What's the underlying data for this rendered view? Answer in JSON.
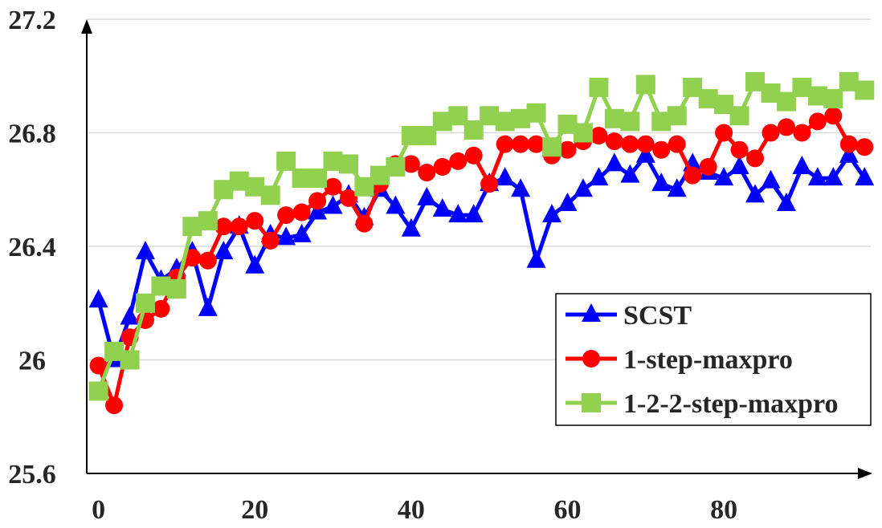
{
  "chart_data": {
    "type": "line",
    "title": "",
    "xlabel": "",
    "ylabel": "",
    "xlim": [
      -1.5,
      99
    ],
    "ylim": [
      25.6,
      27.2
    ],
    "yticks": [
      "25.6",
      "26",
      "26.4",
      "26.8",
      "27.2"
    ],
    "xticks": [
      "0",
      "20",
      "40",
      "60",
      "80"
    ],
    "grid": "horizontal",
    "legend_position": "bottom-right",
    "series": [
      {
        "name": "SCST",
        "color": "#0000ff",
        "marker": "triangle",
        "x": [
          0,
          2,
          4,
          6,
          8,
          10,
          12,
          14,
          16,
          18,
          20,
          22,
          24,
          26,
          28,
          30,
          32,
          34,
          36,
          38,
          40,
          42,
          44,
          46,
          48,
          50,
          52,
          54,
          56,
          58,
          60,
          62,
          64,
          66,
          68,
          70,
          72,
          74,
          76,
          78,
          80,
          82,
          84,
          86,
          88,
          90,
          92,
          94,
          96,
          98
        ],
        "values": [
          26.21,
          26.0,
          26.15,
          26.38,
          26.28,
          26.32,
          26.38,
          26.18,
          26.38,
          26.47,
          26.33,
          26.44,
          26.43,
          26.44,
          26.52,
          26.54,
          26.58,
          26.5,
          26.6,
          26.54,
          26.46,
          26.57,
          26.53,
          26.51,
          26.51,
          26.62,
          26.64,
          26.6,
          26.35,
          26.51,
          26.55,
          26.6,
          26.64,
          26.69,
          26.65,
          26.72,
          26.62,
          26.6,
          26.69,
          26.66,
          26.64,
          26.68,
          26.58,
          26.63,
          26.55,
          26.68,
          26.64,
          26.64,
          26.72,
          26.64
        ]
      },
      {
        "name": "1-step-maxpro",
        "color": "#ff0000",
        "marker": "circle",
        "x": [
          0,
          2,
          4,
          6,
          8,
          10,
          12,
          14,
          16,
          18,
          20,
          22,
          24,
          26,
          28,
          30,
          32,
          34,
          36,
          38,
          40,
          42,
          44,
          46,
          48,
          50,
          52,
          54,
          56,
          58,
          60,
          62,
          64,
          66,
          68,
          70,
          72,
          74,
          76,
          78,
          80,
          82,
          84,
          86,
          88,
          90,
          92,
          94,
          96,
          98
        ],
        "values": [
          25.98,
          25.84,
          26.08,
          26.14,
          26.18,
          26.29,
          26.36,
          26.35,
          26.47,
          26.47,
          26.49,
          26.42,
          26.51,
          26.52,
          26.56,
          26.61,
          26.57,
          26.48,
          26.62,
          26.69,
          26.69,
          26.66,
          26.68,
          26.7,
          26.72,
          26.62,
          26.76,
          26.76,
          26.76,
          26.72,
          26.74,
          26.77,
          26.79,
          26.77,
          26.76,
          26.76,
          26.74,
          26.76,
          26.65,
          26.68,
          26.8,
          26.74,
          26.71,
          26.8,
          26.82,
          26.8,
          26.84,
          26.86,
          26.76,
          26.75
        ]
      },
      {
        "name": "1-2-2-step-maxpro",
        "color": "#92d050",
        "marker": "square",
        "x": [
          0,
          2,
          4,
          6,
          8,
          10,
          12,
          14,
          16,
          18,
          20,
          22,
          24,
          26,
          28,
          30,
          32,
          34,
          36,
          38,
          40,
          42,
          44,
          46,
          48,
          50,
          52,
          54,
          56,
          58,
          60,
          62,
          64,
          66,
          68,
          70,
          72,
          74,
          76,
          78,
          80,
          82,
          84,
          86,
          88,
          90,
          92,
          94,
          96,
          98
        ],
        "values": [
          25.89,
          26.03,
          26.0,
          26.2,
          26.26,
          26.25,
          26.47,
          26.49,
          26.6,
          26.63,
          26.61,
          26.58,
          26.7,
          26.64,
          26.64,
          26.7,
          26.69,
          26.61,
          26.65,
          26.68,
          26.79,
          26.79,
          26.84,
          26.86,
          26.81,
          26.86,
          26.84,
          26.85,
          26.87,
          26.75,
          26.83,
          26.8,
          26.96,
          26.85,
          26.84,
          26.97,
          26.84,
          26.86,
          26.96,
          26.92,
          26.9,
          26.86,
          26.98,
          26.94,
          26.91,
          26.96,
          26.93,
          26.92,
          26.98,
          26.95
        ]
      }
    ]
  }
}
